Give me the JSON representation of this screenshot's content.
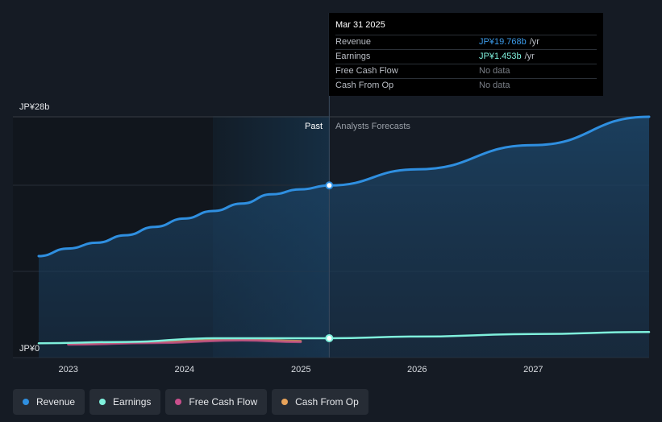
{
  "chart_data": {
    "type": "line",
    "x_axis": {
      "ticks": [
        "2023",
        "2024",
        "2025",
        "2026",
        "2027"
      ],
      "range": [
        "2022-09-30",
        "2027-12-31"
      ]
    },
    "y_axis": {
      "top_label": "JP¥28b",
      "bottom_label": "JP¥0",
      "range": [
        0,
        28
      ]
    },
    "regions": {
      "past_label": "Past",
      "forecast_label": "Analysts Forecasts",
      "divider_date": "2025-03-31"
    },
    "grid": true,
    "series": [
      {
        "name": "Revenue",
        "color": "#2f8fe0",
        "points": [
          [
            "2022-09-30",
            11.3
          ],
          [
            "2022-12-31",
            12.2
          ],
          [
            "2023-03-31",
            12.9
          ],
          [
            "2023-06-30",
            13.8
          ],
          [
            "2023-09-30",
            14.8
          ],
          [
            "2023-12-31",
            15.8
          ],
          [
            "2024-03-31",
            16.7
          ],
          [
            "2024-06-30",
            17.6
          ],
          [
            "2024-09-30",
            18.7
          ],
          [
            "2024-12-31",
            19.3
          ],
          [
            "2025-03-31",
            19.768
          ],
          [
            "2025-12-31",
            21.7
          ],
          [
            "2026-12-31",
            24.6
          ],
          [
            "2027-12-31",
            28.0
          ]
        ]
      },
      {
        "name": "Earnings",
        "color": "#7ff0dc",
        "points": [
          [
            "2022-09-30",
            0.85
          ],
          [
            "2023-06-30",
            1.0
          ],
          [
            "2024-03-31",
            1.45
          ],
          [
            "2025-03-31",
            1.453
          ],
          [
            "2025-12-31",
            1.65
          ],
          [
            "2026-12-31",
            1.95
          ],
          [
            "2027-12-31",
            2.2
          ]
        ]
      },
      {
        "name": "Free Cash Flow",
        "color": "#c94f8c",
        "points": [
          [
            "2023-01-01",
            0.7
          ],
          [
            "2023-09-30",
            0.9
          ],
          [
            "2024-06-30",
            1.2
          ],
          [
            "2024-12-31",
            1.0
          ]
        ]
      },
      {
        "name": "Cash From Op",
        "color": "#e8a35a",
        "points": [
          [
            "2023-01-01",
            0.8
          ],
          [
            "2023-09-30",
            1.0
          ],
          [
            "2024-06-30",
            1.3
          ],
          [
            "2024-12-31",
            1.1
          ]
        ]
      }
    ],
    "legend": {
      "position": "bottom-left"
    }
  },
  "tooltip": {
    "date": "Mar 31 2025",
    "rows": [
      {
        "label": "Revenue",
        "value": "JP¥19.768b",
        "unit": "/yr"
      },
      {
        "label": "Earnings",
        "value": "JP¥1.453b",
        "unit": "/yr"
      },
      {
        "label": "Free Cash Flow",
        "value": "No data",
        "unit": ""
      },
      {
        "label": "Cash From Op",
        "value": "No data",
        "unit": ""
      }
    ]
  },
  "legend": [
    {
      "label": "Revenue",
      "color": "#2f8fe0"
    },
    {
      "label": "Earnings",
      "color": "#7ff0dc"
    },
    {
      "label": "Free Cash Flow",
      "color": "#c94f8c"
    },
    {
      "label": "Cash From Op",
      "color": "#e8a35a"
    }
  ]
}
